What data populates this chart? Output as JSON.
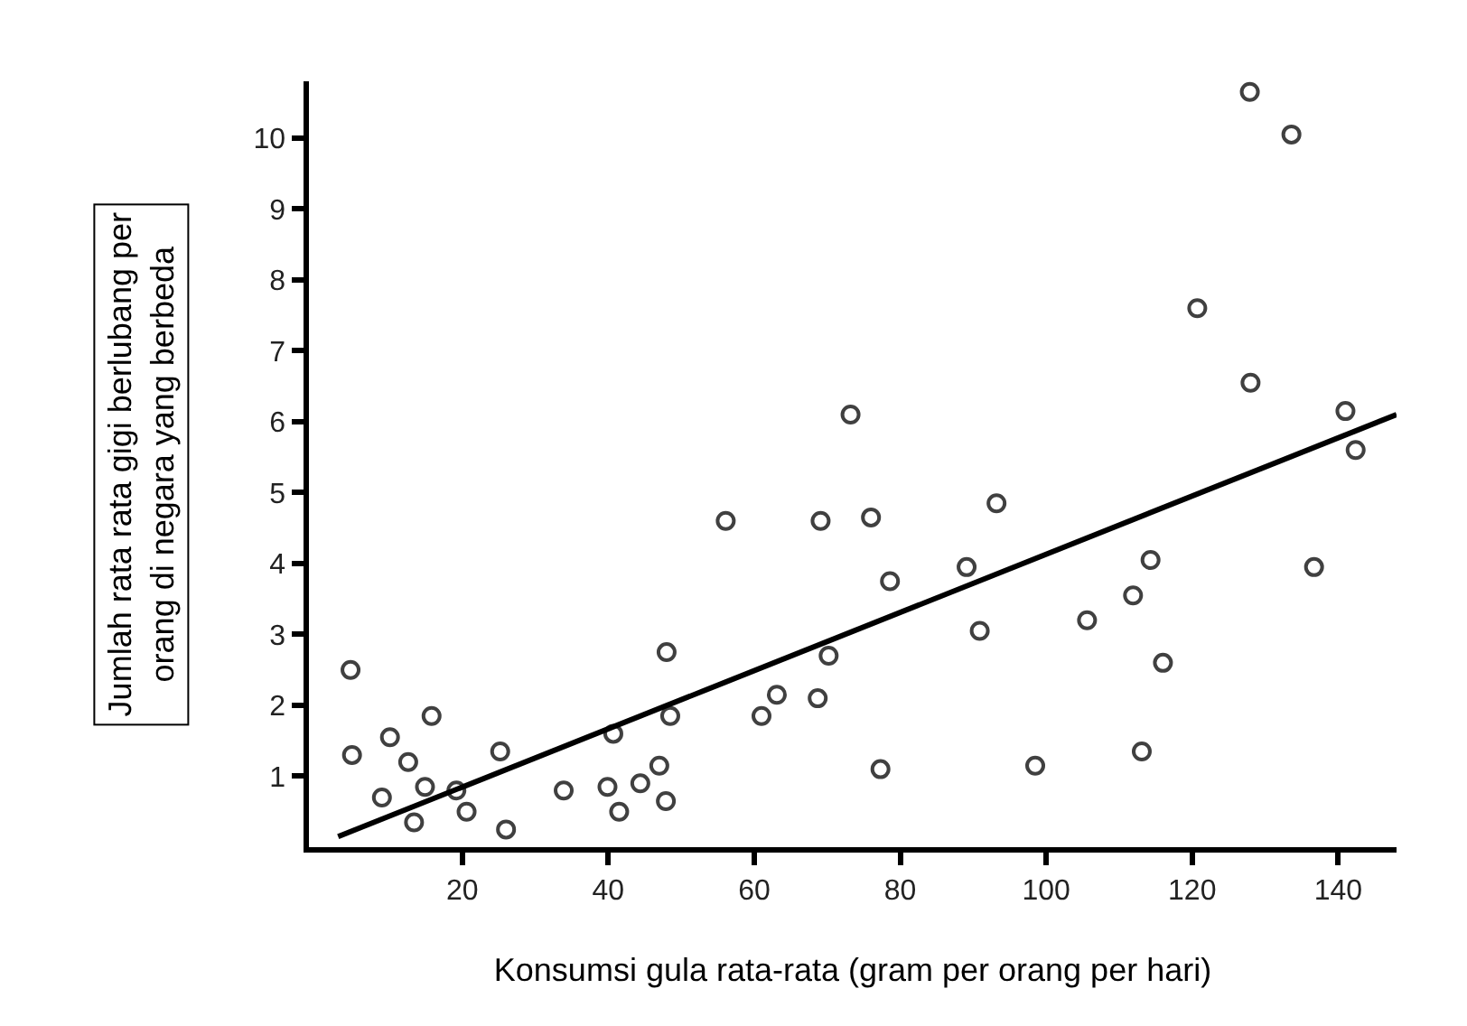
{
  "chart_data": {
    "type": "scatter",
    "xlabel": "Konsumsi gula rata-rata (gram per orang per hari)",
    "ylabel": "Jumlah rata rata gigi berlubang per orang di negara yang berbeda",
    "xlim": [
      -1,
      148
    ],
    "xticks": [
      20,
      40,
      60,
      80,
      100,
      120,
      140
    ],
    "ylim": [
      0,
      10.8
    ],
    "yticks": [
      1,
      2,
      3,
      4,
      5,
      6,
      7,
      8,
      9,
      10
    ],
    "legend": false,
    "marker": "circle",
    "series": [
      {
        "color": "#404040",
        "x": [
          4.7,
          4.9,
          9.0,
          10.1,
          12.6,
          15.8,
          14.9,
          13.4,
          19.2,
          20.6,
          25.2,
          26.0,
          33.9,
          39.9,
          40.7,
          41.5,
          44.4,
          47.0,
          47.9,
          48.0,
          48.5,
          56.1,
          61.0,
          63.1,
          68.7,
          69.1,
          70.2,
          73.2,
          76.0,
          78.6,
          77.3,
          93.2,
          89.1,
          90.9,
          98.5,
          105.6,
          111.9,
          114.3,
          116.0,
          113.1,
          136.7,
          127.9,
          133.6,
          120.7,
          128.0,
          141.0,
          142.4
        ],
        "values": [
          2.5,
          1.3,
          0.7,
          1.55,
          1.2,
          1.85,
          0.85,
          0.35,
          0.8,
          0.5,
          1.35,
          0.25,
          0.8,
          0.85,
          1.6,
          0.5,
          0.9,
          1.15,
          0.65,
          2.75,
          1.85,
          4.6,
          1.85,
          2.15,
          2.1,
          4.6,
          2.7,
          6.1,
          4.65,
          3.75,
          1.1,
          4.85,
          3.95,
          3.05,
          1.15,
          3.2,
          3.55,
          4.05,
          2.6,
          1.35,
          3.95,
          10.65,
          10.05,
          7.6,
          6.55,
          6.15,
          5.6
        ]
      },
      {
        "type": "line",
        "color": "#000000",
        "marker": "none",
        "line_style": "solid",
        "x": [
          3,
          148
        ],
        "values": [
          0.15,
          6.1
        ]
      }
    ]
  }
}
